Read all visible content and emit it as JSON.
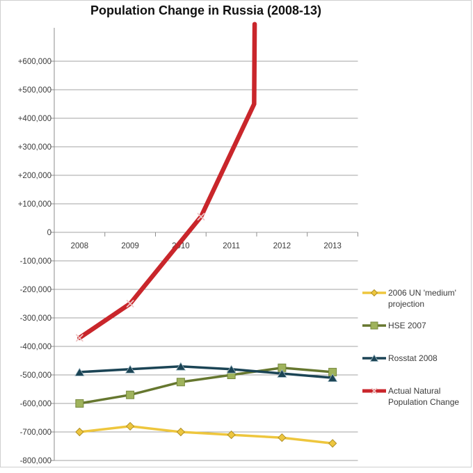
{
  "title": "Population Change in Russia (2008-13)",
  "palette": {
    "background": "#ffffff",
    "grid": "#a3a3a3",
    "axis": "#8c8c8c",
    "tick_text": "#3a3a3a",
    "title_text": "#111111",
    "frame": "#cfcfcf",
    "un_yellow": "#eec63d",
    "hse_olive": "#66772f",
    "rosstat_teal": "#1b4455",
    "actual_red": "#c9262b"
  },
  "chart_data": {
    "type": "line",
    "title": "Population Change in Russia (2008-13)",
    "xlabel": "",
    "ylabel": "",
    "grid": true,
    "legend_position": "right",
    "categories": [
      "2008",
      "2009",
      "2010",
      "2011",
      "2012",
      "2013"
    ],
    "y_axis": {
      "min": -800000,
      "max": 700000,
      "tick_interval": 100000,
      "ticks": [
        {
          "label": "+600,000",
          "value": 600000
        },
        {
          "label": "+500,000",
          "value": 500000
        },
        {
          "label": "+400,000",
          "value": 400000
        },
        {
          "label": "+300,000",
          "value": 300000
        },
        {
          "label": "+200,000",
          "value": 200000
        },
        {
          "label": "+100,000",
          "value": 100000
        },
        {
          "label": "0",
          "value": 0
        },
        {
          "label": "-100,000",
          "value": -100000
        },
        {
          "label": "-200,000",
          "value": -200000
        },
        {
          "label": "-300,000",
          "value": -300000
        },
        {
          "label": "-400,000",
          "value": -400000
        },
        {
          "label": "-500,000",
          "value": -500000
        },
        {
          "label": "-600,000",
          "value": -600000
        },
        {
          "label": "-700,000",
          "value": -700000
        },
        {
          "label": "-800,000",
          "value": -800000
        }
      ]
    },
    "series": [
      {
        "name": "2006 UN 'medium' projection",
        "color": "#eec63d",
        "line_width": 3.5,
        "marker": "diamond",
        "marker_fill": "#edc63f",
        "marker_stroke": "#b08f25",
        "values": [
          -700000,
          -680000,
          -700000,
          -710000,
          -720000,
          -740000
        ]
      },
      {
        "name": "HSE 2007",
        "color": "#66772f",
        "line_width": 3.5,
        "marker": "square",
        "marker_fill": "#9fb35c",
        "marker_stroke": "#76883d",
        "values": [
          -600000,
          -570000,
          -525000,
          -500000,
          -475000,
          -490000
        ]
      },
      {
        "name": "Rosstat 2008",
        "color": "#1b4455",
        "line_width": 3.5,
        "marker": "triangle-up",
        "marker_fill": "#1b4455",
        "marker_stroke": "#9fb8c4",
        "values": [
          -490000,
          -480000,
          -470000,
          -480000,
          -495000,
          -510000
        ]
      },
      {
        "name": "Actual Natural Population Change",
        "color": "#c9262b",
        "line_width": 6.5,
        "marker": "x",
        "marker_fill": "#eec6c6",
        "style": "hand-drawn annotation line that exits the top of the plot",
        "points": [
          {
            "year": 2008,
            "value": -370000
          },
          {
            "year": 2009,
            "value": -250000
          },
          {
            "year": 2010.4,
            "value": 55000
          },
          {
            "year": 2011.45,
            "value": 450000
          },
          {
            "year": 2011.46,
            "value": 730000
          }
        ]
      }
    ]
  },
  "legend": {
    "items": [
      {
        "line1": "2006 UN 'medium'",
        "line2": "projection"
      },
      {
        "line1": "HSE 2007",
        "line2": ""
      },
      {
        "line1": "Rosstat 2008",
        "line2": ""
      },
      {
        "line1": "Actual Natural",
        "line2": "Population Change"
      }
    ]
  }
}
